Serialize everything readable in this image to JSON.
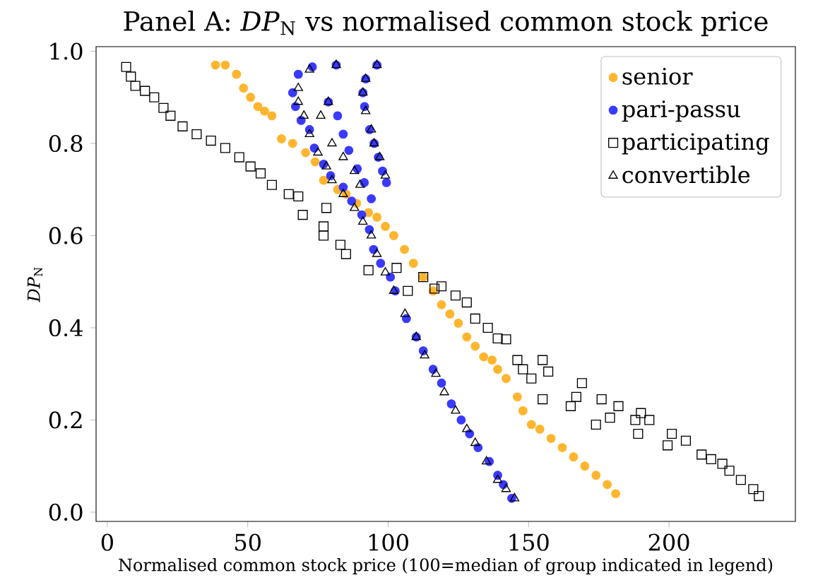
{
  "chart_data": {
    "type": "scatter",
    "title": "Panel A: *DP*$_{N}$ vs normalised common stock price",
    "xlabel": "Normalised common stock price (100=median of group indicated in legend)",
    "ylabel": "*DP*$_{N}$",
    "xlim": [
      -4,
      245
    ],
    "ylim": [
      -0.02,
      1.01
    ],
    "xticks": [
      0,
      50,
      100,
      150,
      200
    ],
    "yticks": [
      {
        "value": 0,
        "label": "0.0"
      },
      {
        "value": 0.2,
        "label": "0.2"
      },
      {
        "value": 0.4,
        "label": "0.4"
      },
      {
        "value": 0.6,
        "label": "0.6"
      },
      {
        "value": 0.8,
        "label": "0.8"
      },
      {
        "value": 1.0,
        "label": "1.0"
      }
    ],
    "grid": false,
    "legend": "top right",
    "series": [
      {
        "name": "senior",
        "color": "#ffb52e",
        "marker": "circle",
        "x": [
          38.5,
          42,
          46,
          48.5,
          51,
          53.6,
          56,
          58.6,
          62,
          66,
          70.6,
          74,
          77,
          82,
          85,
          88.8,
          93,
          96,
          99,
          102,
          105.8,
          109,
          112.5,
          116,
          119,
          122,
          125,
          128,
          131,
          134,
          137,
          139,
          142,
          146,
          148,
          151,
          154,
          158,
          162,
          166,
          170,
          174,
          178,
          181
        ],
        "values": [
          0.97,
          0.97,
          0.95,
          0.92,
          0.9,
          0.88,
          0.87,
          0.86,
          0.81,
          0.8,
          0.78,
          0.76,
          0.72,
          0.7,
          0.69,
          0.67,
          0.65,
          0.64,
          0.62,
          0.6,
          0.57,
          0.54,
          0.51,
          0.48,
          0.45,
          0.43,
          0.41,
          0.38,
          0.36,
          0.337,
          0.33,
          0.31,
          0.29,
          0.25,
          0.22,
          0.19,
          0.18,
          0.16,
          0.14,
          0.12,
          0.1,
          0.08,
          0.06,
          0.04
        ]
      },
      {
        "name": "pari-passu",
        "color": "#3a3aff",
        "marker": "circle",
        "x": [
          73,
          68,
          66,
          67,
          69,
          72,
          73.7,
          77,
          79.5,
          84,
          87,
          90.6,
          93.3,
          94.8,
          97.3,
          100.8,
          102.5,
          106.5,
          110,
          112.5,
          116,
          119,
          122.5,
          126,
          129,
          132,
          136,
          139,
          141,
          144,
          81.5,
          78.7,
          82,
          84,
          86,
          89,
          91.5,
          94,
          96,
          92,
          91,
          91.6,
          93.4,
          95,
          96.5,
          98,
          99.4
        ],
        "values": [
          0.966,
          0.95,
          0.91,
          0.88,
          0.85,
          0.83,
          0.79,
          0.755,
          0.73,
          0.705,
          0.675,
          0.645,
          0.613,
          0.57,
          0.54,
          0.51,
          0.48,
          0.42,
          0.38,
          0.35,
          0.31,
          0.28,
          0.235,
          0.2,
          0.17,
          0.14,
          0.11,
          0.08,
          0.06,
          0.03,
          0.97,
          0.89,
          0.86,
          0.82,
          0.785,
          0.745,
          0.715,
          0.68,
          0.97,
          0.94,
          0.91,
          0.88,
          0.83,
          0.8,
          0.77,
          0.74,
          0.715
        ]
      },
      {
        "name": "participating",
        "color": "#000000",
        "marker": "square",
        "x": [
          6.7,
          8.4,
          10,
          13.4,
          16.7,
          20,
          22.5,
          26.8,
          31.8,
          36.9,
          42,
          47,
          51,
          54.6,
          58.6,
          64.6,
          68,
          69.6,
          78,
          77,
          77,
          83,
          85,
          93,
          103,
          107,
          112.5,
          116.5,
          119,
          124,
          128,
          131,
          135.5,
          139,
          142,
          146,
          148,
          151,
          155,
          157,
          155,
          165,
          167,
          169,
          174,
          176,
          179,
          182,
          188,
          190,
          193,
          189,
          199.5,
          201,
          206,
          211.6,
          215,
          219,
          221.5,
          225.6,
          230,
          232
        ],
        "values": [
          0.966,
          0.945,
          0.925,
          0.914,
          0.9,
          0.877,
          0.86,
          0.837,
          0.82,
          0.806,
          0.79,
          0.77,
          0.75,
          0.735,
          0.71,
          0.69,
          0.685,
          0.645,
          0.66,
          0.62,
          0.6,
          0.58,
          0.56,
          0.525,
          0.53,
          0.48,
          0.51,
          0.485,
          0.49,
          0.47,
          0.455,
          0.42,
          0.4,
          0.377,
          0.375,
          0.33,
          0.31,
          0.29,
          0.33,
          0.305,
          0.245,
          0.23,
          0.25,
          0.28,
          0.19,
          0.245,
          0.205,
          0.23,
          0.2,
          0.215,
          0.2,
          0.17,
          0.145,
          0.17,
          0.155,
          0.125,
          0.115,
          0.105,
          0.09,
          0.07,
          0.05,
          0.035
        ]
      },
      {
        "name": "convertible",
        "color": "#000000",
        "marker": "triangle",
        "x": [
          72,
          68,
          68,
          70,
          72,
          75,
          78,
          80,
          84,
          88,
          91,
          94,
          96,
          99,
          102,
          106,
          110,
          113,
          117,
          120,
          124,
          128,
          131,
          135,
          139,
          142,
          145,
          81.5,
          78.7,
          76,
          80,
          84,
          88,
          90,
          96,
          92,
          91,
          92,
          94,
          95,
          97,
          99
        ],
        "values": [
          0.96,
          0.92,
          0.89,
          0.86,
          0.82,
          0.78,
          0.75,
          0.72,
          0.69,
          0.66,
          0.63,
          0.6,
          0.56,
          0.52,
          0.48,
          0.43,
          0.38,
          0.34,
          0.3,
          0.26,
          0.22,
          0.18,
          0.15,
          0.11,
          0.07,
          0.05,
          0.03,
          0.97,
          0.89,
          0.86,
          0.8,
          0.77,
          0.74,
          0.71,
          0.97,
          0.94,
          0.91,
          0.87,
          0.83,
          0.8,
          0.77,
          0.73
        ]
      }
    ]
  }
}
